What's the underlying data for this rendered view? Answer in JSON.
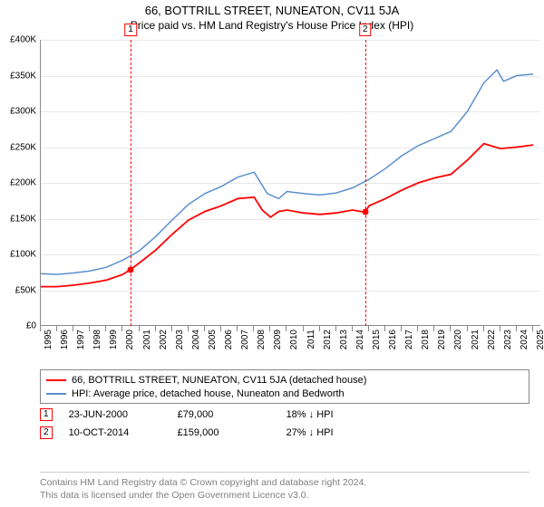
{
  "title": "66, BOTTRILL STREET, NUNEATON, CV11 5JA",
  "subtitle": "Price paid vs. HM Land Registry's House Price Index (HPI)",
  "chart": {
    "type": "line",
    "background_color": "#ffffff",
    "grid_color": "#e8e8e8",
    "axis_color": "#888888",
    "label_fontsize": 10,
    "ylim": [
      0,
      400000
    ],
    "ytick_step": 50000,
    "yticks": [
      "£0",
      "£50K",
      "£100K",
      "£150K",
      "£200K",
      "£250K",
      "£300K",
      "£350K",
      "£400K"
    ],
    "xlim": [
      1995,
      2025.5
    ],
    "xticks": [
      1995,
      1996,
      1997,
      1998,
      1999,
      2000,
      2001,
      2002,
      2003,
      2004,
      2005,
      2006,
      2007,
      2008,
      2009,
      2010,
      2011,
      2012,
      2013,
      2014,
      2015,
      2016,
      2017,
      2018,
      2019,
      2020,
      2021,
      2022,
      2023,
      2024,
      2025
    ],
    "series": [
      {
        "name": "hpi",
        "color": "#5a8fce",
        "line_width": 1.5,
        "points": [
          [
            1995,
            73000
          ],
          [
            1996,
            72000
          ],
          [
            1997,
            74000
          ],
          [
            1998,
            77000
          ],
          [
            1999,
            82000
          ],
          [
            2000,
            92000
          ],
          [
            2001,
            105000
          ],
          [
            2002,
            125000
          ],
          [
            2003,
            148000
          ],
          [
            2004,
            170000
          ],
          [
            2005,
            185000
          ],
          [
            2006,
            195000
          ],
          [
            2007,
            208000
          ],
          [
            2008,
            215000
          ],
          [
            2008.8,
            185000
          ],
          [
            2009.5,
            178000
          ],
          [
            2010,
            188000
          ],
          [
            2011,
            185000
          ],
          [
            2012,
            183000
          ],
          [
            2013,
            186000
          ],
          [
            2014,
            193000
          ],
          [
            2015,
            205000
          ],
          [
            2016,
            220000
          ],
          [
            2017,
            238000
          ],
          [
            2018,
            252000
          ],
          [
            2019,
            262000
          ],
          [
            2020,
            272000
          ],
          [
            2021,
            300000
          ],
          [
            2022,
            340000
          ],
          [
            2022.8,
            358000
          ],
          [
            2023.2,
            342000
          ],
          [
            2024,
            350000
          ],
          [
            2025,
            352000
          ]
        ]
      },
      {
        "name": "price_paid",
        "color": "#ff0000",
        "line_width": 1.8,
        "points": [
          [
            1995,
            55000
          ],
          [
            1996,
            55000
          ],
          [
            1997,
            57000
          ],
          [
            1998,
            60000
          ],
          [
            1999,
            64000
          ],
          [
            2000,
            72000
          ],
          [
            2000.47,
            79000
          ],
          [
            2001,
            88000
          ],
          [
            2002,
            106000
          ],
          [
            2003,
            128000
          ],
          [
            2004,
            148000
          ],
          [
            2005,
            160000
          ],
          [
            2006,
            168000
          ],
          [
            2007,
            178000
          ],
          [
            2008,
            180000
          ],
          [
            2008.5,
            162000
          ],
          [
            2009,
            152000
          ],
          [
            2009.5,
            160000
          ],
          [
            2010,
            162000
          ],
          [
            2011,
            158000
          ],
          [
            2012,
            156000
          ],
          [
            2013,
            158000
          ],
          [
            2014,
            162000
          ],
          [
            2014.77,
            159000
          ],
          [
            2015,
            168000
          ],
          [
            2016,
            178000
          ],
          [
            2017,
            190000
          ],
          [
            2018,
            200000
          ],
          [
            2019,
            207000
          ],
          [
            2020,
            212000
          ],
          [
            2021,
            232000
          ],
          [
            2022,
            255000
          ],
          [
            2023,
            248000
          ],
          [
            2024,
            250000
          ],
          [
            2025,
            253000
          ]
        ]
      }
    ],
    "markers": [
      {
        "num": "1",
        "x": 2000.47,
        "y": 79000
      },
      {
        "num": "2",
        "x": 2014.77,
        "y": 159000
      }
    ]
  },
  "legend": {
    "items": [
      {
        "color": "#ff0000",
        "label": "66, BOTTRILL STREET, NUNEATON, CV11 5JA (detached house)"
      },
      {
        "color": "#5a8fce",
        "label": "HPI: Average price, detached house, Nuneaton and Bedworth"
      }
    ]
  },
  "sales": [
    {
      "num": "1",
      "date": "23-JUN-2000",
      "price": "£79,000",
      "diff": "18% ↓ HPI"
    },
    {
      "num": "2",
      "date": "10-OCT-2014",
      "price": "£159,000",
      "diff": "27% ↓ HPI"
    }
  ],
  "footer_line1": "Contains HM Land Registry data © Crown copyright and database right 2024.",
  "footer_line2": "This data is licensed under the Open Government Licence v3.0."
}
